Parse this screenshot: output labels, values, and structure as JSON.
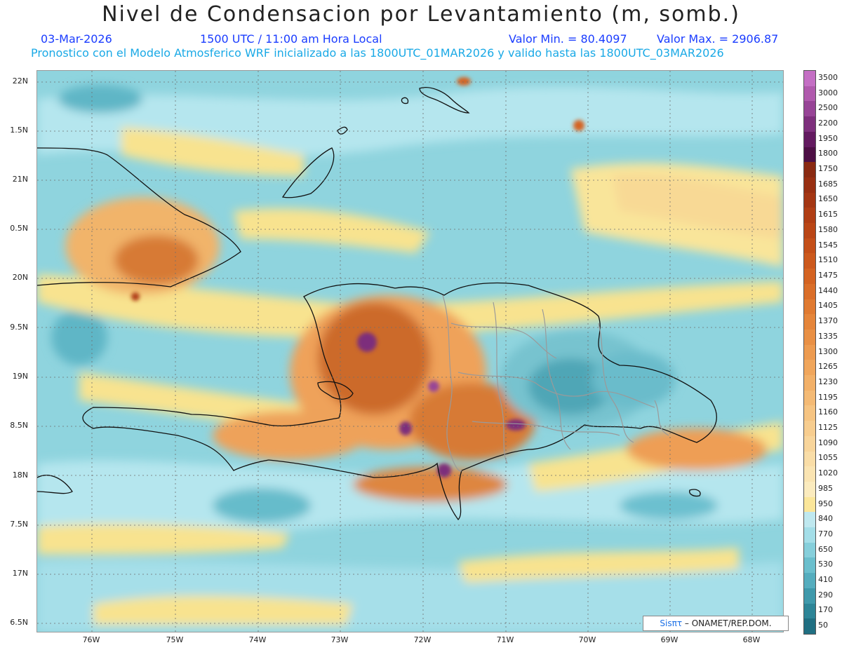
{
  "header": {
    "title": "Nivel de Condensacion por Levantamiento (m, somb.)",
    "date": "03-Mar-2026",
    "time": "1500 UTC / 11:00 am Hora Local",
    "min_label": "Valor Min. = 80.4097",
    "max_label": "Valor Max. = 2906.87",
    "subtitle": "Pronostico con el Modelo Atmosferico WRF inicializado a las 1800UTC_01MAR2026 y valido hasta las  1800UTC_03MAR2026"
  },
  "map": {
    "lat_ticks": [
      "22N",
      "1.5N",
      "21N",
      "0.5N",
      "20N",
      "9.5N",
      "19N",
      "8.5N",
      "18N",
      "7.5N",
      "17N",
      "6.5N"
    ],
    "lon_ticks": [
      "76W",
      "75W",
      "74W",
      "73W",
      "72W",
      "71W",
      "70W",
      "69W",
      "68W"
    ],
    "credit_brand": "Sisπτ",
    "credit_org": " – ONAMET/REP.DOM."
  },
  "legend": {
    "levels": [
      "3500",
      "3000",
      "2500",
      "2200",
      "1950",
      "1800",
      "1750",
      "1685",
      "1650",
      "1615",
      "1580",
      "1545",
      "1510",
      "1475",
      "1440",
      "1405",
      "1370",
      "1335",
      "1300",
      "1265",
      "1230",
      "1195",
      "1160",
      "1125",
      "1090",
      "1055",
      "1020",
      "985",
      "950",
      "840",
      "770",
      "650",
      "530",
      "410",
      "290",
      "170",
      "50"
    ],
    "colors": [
      "#c46fc4",
      "#b05aad",
      "#974496",
      "#7d2f7c",
      "#631a60",
      "#4d0f45",
      "#8a2a12",
      "#982f12",
      "#a43613",
      "#b03e15",
      "#ba4616",
      "#c44f19",
      "#cc591d",
      "#d46322",
      "#da6e29",
      "#e07a31",
      "#e5853a",
      "#e99045",
      "#ed9b50",
      "#f0a65c",
      "#f2b068",
      "#f4ba75",
      "#f6c482",
      "#f7cd8f",
      "#f8d59b",
      "#f9dda7",
      "#fae4b2",
      "#fbebbe",
      "#fbe69a",
      "#bfe8ef",
      "#a4dee8",
      "#86cfdb",
      "#6bbfcd",
      "#55adbe",
      "#3f99ab",
      "#2d8597",
      "#206f82"
    ]
  }
}
